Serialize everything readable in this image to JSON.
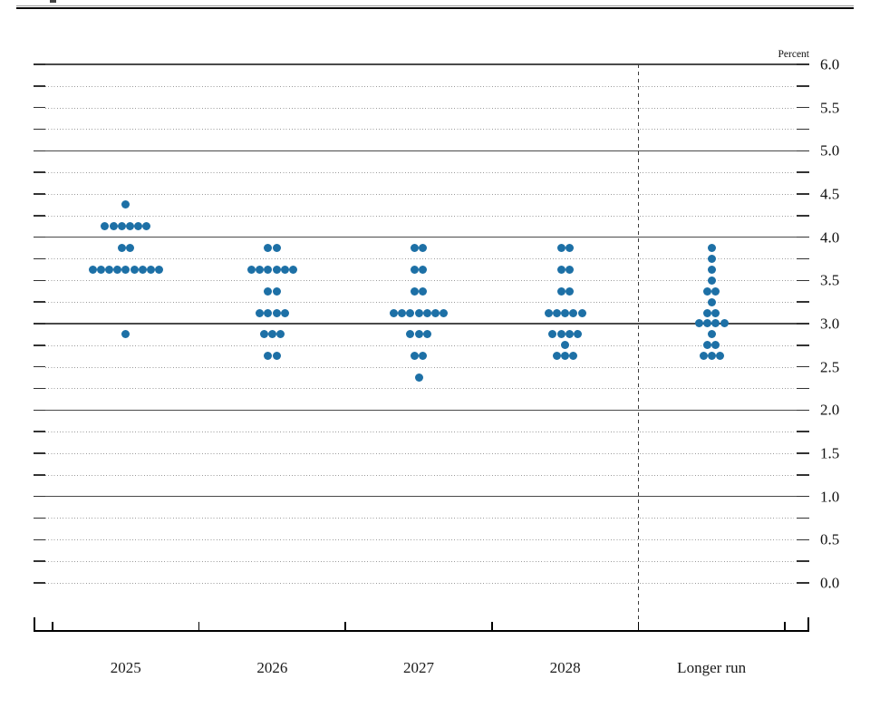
{
  "chart_data": {
    "type": "scatter",
    "variant": "fomc_dot_plot",
    "title": "",
    "xlabel": "",
    "ylabel": "Percent",
    "ylim": [
      0.0,
      6.0
    ],
    "y_grid_step": 0.25,
    "y_tick_label_step": 0.5,
    "grid": "dotted quarters, solid integer lines",
    "legend_position": "none",
    "solid_gridlines": [
      6,
      5,
      4,
      3,
      2,
      1
    ],
    "y_tick_labels": [
      "6.0",
      "5.5",
      "5.0",
      "4.5",
      "4.0",
      "3.5",
      "3.0",
      "2.5",
      "2.0",
      "1.5",
      "1.0",
      "0.5",
      "0.0"
    ],
    "categories": [
      "2025",
      "2026",
      "2027",
      "2028",
      "Longer run"
    ],
    "separator_before_category": "Longer run",
    "dot_color": "#1d70a6",
    "series": [
      {
        "category": "2025",
        "dots": [
          {
            "rate": 4.375,
            "count": 1
          },
          {
            "rate": 4.125,
            "count": 6
          },
          {
            "rate": 3.875,
            "count": 2
          },
          {
            "rate": 3.625,
            "count": 9
          },
          {
            "rate": 2.875,
            "count": 1
          }
        ]
      },
      {
        "category": "2026",
        "dots": [
          {
            "rate": 3.875,
            "count": 2
          },
          {
            "rate": 3.625,
            "count": 6
          },
          {
            "rate": 3.375,
            "count": 2
          },
          {
            "rate": 3.125,
            "count": 4
          },
          {
            "rate": 2.875,
            "count": 3
          },
          {
            "rate": 2.625,
            "count": 2
          }
        ]
      },
      {
        "category": "2027",
        "dots": [
          {
            "rate": 3.875,
            "count": 2
          },
          {
            "rate": 3.625,
            "count": 2
          },
          {
            "rate": 3.375,
            "count": 2
          },
          {
            "rate": 3.125,
            "count": 7
          },
          {
            "rate": 2.875,
            "count": 3
          },
          {
            "rate": 2.625,
            "count": 2
          },
          {
            "rate": 2.375,
            "count": 1
          }
        ]
      },
      {
        "category": "2028",
        "dots": [
          {
            "rate": 3.875,
            "count": 2
          },
          {
            "rate": 3.625,
            "count": 2
          },
          {
            "rate": 3.375,
            "count": 2
          },
          {
            "rate": 3.125,
            "count": 5
          },
          {
            "rate": 2.875,
            "count": 4
          },
          {
            "rate": 2.75,
            "count": 1
          },
          {
            "rate": 2.625,
            "count": 3
          }
        ]
      },
      {
        "category": "Longer run",
        "dots": [
          {
            "rate": 3.875,
            "count": 1
          },
          {
            "rate": 3.75,
            "count": 1
          },
          {
            "rate": 3.625,
            "count": 1
          },
          {
            "rate": 3.5,
            "count": 1
          },
          {
            "rate": 3.375,
            "count": 2
          },
          {
            "rate": 3.25,
            "count": 1
          },
          {
            "rate": 3.125,
            "count": 2
          },
          {
            "rate": 3.0,
            "count": 4
          },
          {
            "rate": 2.875,
            "count": 1
          },
          {
            "rate": 2.75,
            "count": 2
          },
          {
            "rate": 2.625,
            "count": 3
          }
        ]
      }
    ]
  }
}
